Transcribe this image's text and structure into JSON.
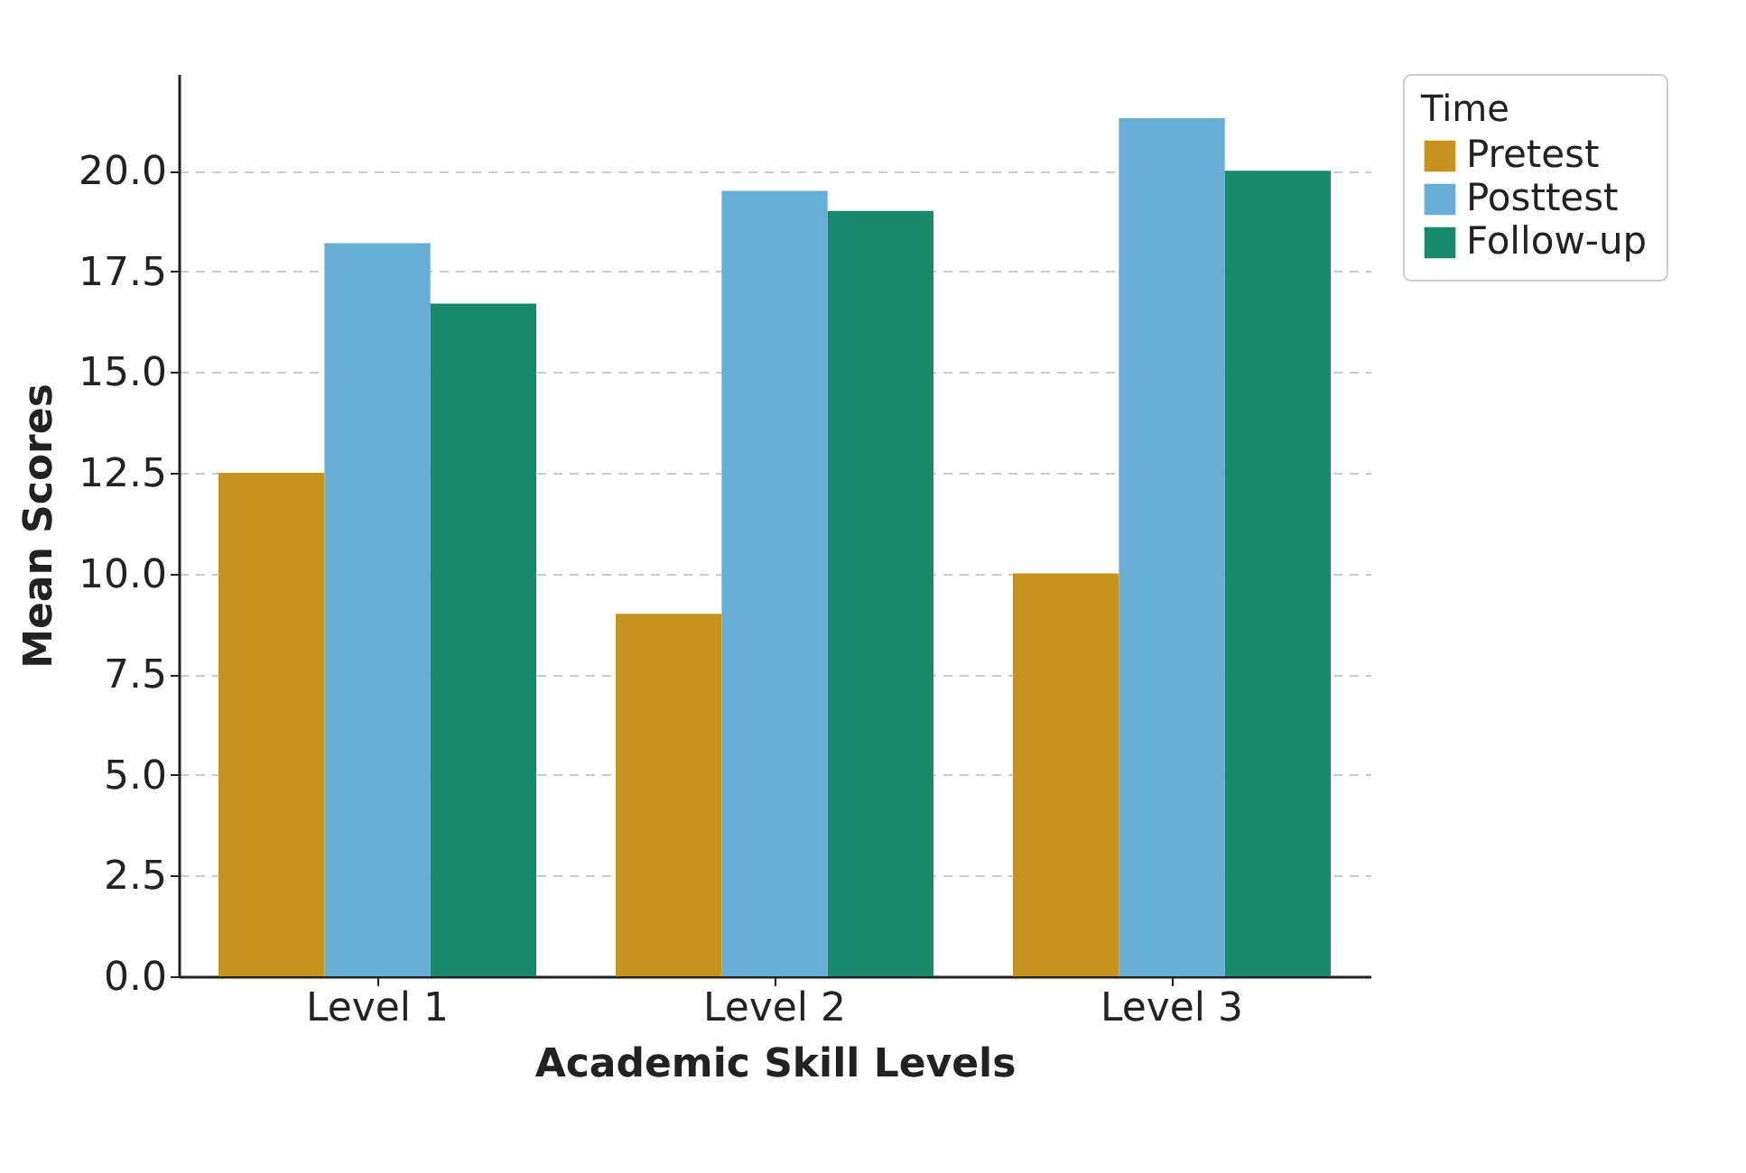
{
  "chart_data": {
    "type": "bar",
    "xlabel": "Academic Skill Levels",
    "ylabel": "Mean Scores",
    "legend_title": "Time",
    "categories": [
      "Level 1",
      "Level 2",
      "Level 3"
    ],
    "series": [
      {
        "name": "Pretest",
        "color": "#c8921f",
        "values": [
          12.5,
          9.0,
          10.0
        ]
      },
      {
        "name": "Posttest",
        "color": "#66aed6",
        "values": [
          18.2,
          19.5,
          21.3
        ]
      },
      {
        "name": "Follow-up",
        "color": "#168a6a",
        "values": [
          16.7,
          19.0,
          20.0
        ]
      }
    ],
    "ylim": [
      0,
      22.4
    ],
    "yticks": [
      {
        "value": 0,
        "label": "0.0"
      },
      {
        "value": 2.5,
        "label": "2.5"
      },
      {
        "value": 5,
        "label": "5.0"
      },
      {
        "value": 7.5,
        "label": "7.5"
      },
      {
        "value": 10,
        "label": "10.0"
      },
      {
        "value": 12.5,
        "label": "12.5"
      },
      {
        "value": 15,
        "label": "15.0"
      },
      {
        "value": 17.5,
        "label": "17.5"
      },
      {
        "value": 20,
        "label": "20.0"
      }
    ],
    "grid": "y",
    "legend": "top right"
  }
}
